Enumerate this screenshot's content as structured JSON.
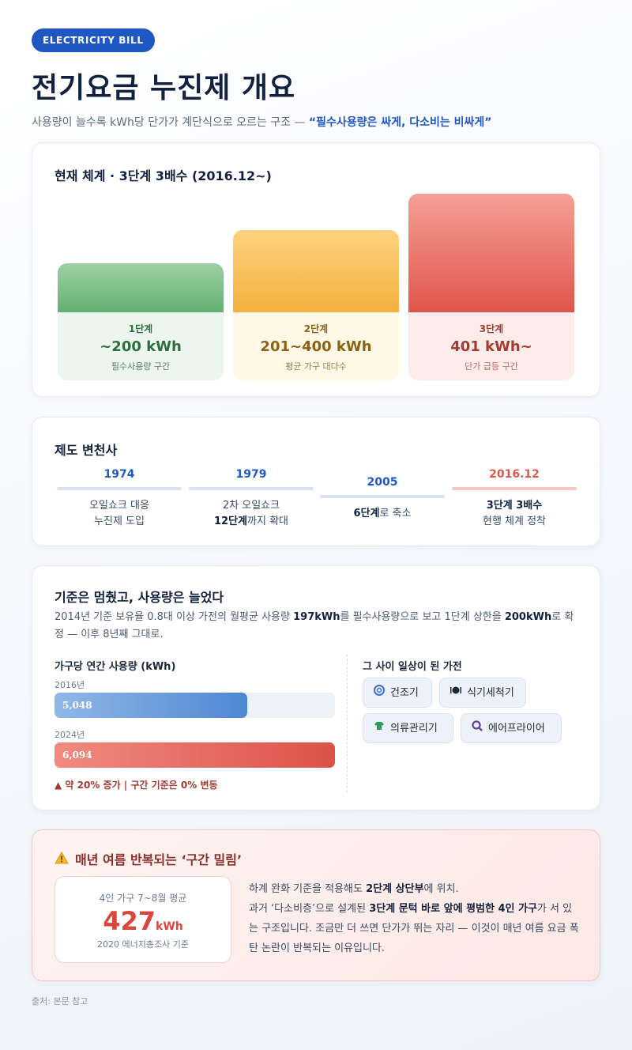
{
  "badge": "ELECTRICITY BILL",
  "title": "전기요금 누진제 개요",
  "subtitle": {
    "text": "사용량이 늘수록 kWh당 단가가 계단식으로 오르는 구조 — ",
    "highlight": "“필수사용량은 싸게, 다소비는 비싸게”"
  },
  "tiers": {
    "title": "현재 체계 · 3단계 3배수 (2016.12~)",
    "items": [
      {
        "step": "1단계",
        "range": "~200 kWh",
        "desc": "필수사용량 구간"
      },
      {
        "step": "2단계",
        "range": "201~400 kWh",
        "desc": "평균 가구 대다수"
      },
      {
        "step": "3단계",
        "range": "401 kWh~",
        "desc": "단가 급등 구간"
      }
    ]
  },
  "history": {
    "title": "제도 변천사",
    "items": [
      {
        "year": "1974",
        "line1": "오일쇼크 대응",
        "line2": "누진제 도입"
      },
      {
        "year": "1979",
        "line1": "2차 오일쇼크",
        "line2_bold": "12단계",
        "line2_rest": "까지 확대"
      },
      {
        "year": "2005",
        "line1_bold": "6단계",
        "line1_rest": "로 축소"
      },
      {
        "year": "2016.12",
        "line1_bold": "3단계 3배수",
        "line2": "현행 체계 정착"
      }
    ]
  },
  "usage": {
    "title": "기준은 멈췄고, 사용량은 늘었다",
    "desc": {
      "p1": "2014년 기준 보유율 0.8대 이상 가전의 월평균 사용량 ",
      "b1": "197kWh",
      "p2": "를 필수사용량으로 보고 1단계 상한을 ",
      "b2": "200kWh",
      "p3": "로 확정 — 이후 8년째 그대로."
    },
    "chart_title": "가구당 연간 사용량 (kWh)",
    "bars": [
      {
        "year": "2016년",
        "value_label": "5,048",
        "value": 5048
      },
      {
        "year": "2024년",
        "value_label": "6,094",
        "value": 6094
      }
    ],
    "increase": "▲ 약 20% 증가  |  구간 기준은 0% 변동",
    "appliances_title": "그 사이 일상이 된 가전",
    "appliances": [
      {
        "label": "건조기",
        "icon": "dryer-icon",
        "color": "#3b6fd6"
      },
      {
        "label": "식기세척기",
        "icon": "dishwasher-icon",
        "color": "#1d2939"
      },
      {
        "label": "의류관리기",
        "icon": "clothes-care-icon",
        "color": "#2f9a5a"
      },
      {
        "label": "에어프라이어",
        "icon": "airfryer-icon",
        "color": "#6a3fa0"
      }
    ]
  },
  "summer": {
    "title": "매년 여름 반복되는 ‘구간 밀림’",
    "box": {
      "caption": "4인 가구 7~8월 평균",
      "value": "427",
      "unit": "kWh",
      "source": "2020 에너지총조사 기준"
    },
    "text": {
      "p1": "하계 완화 기준을 적용해도 ",
      "b1": "2단계 상단부",
      "p2": "에 위치.",
      "p3": "과거 ‘다소비층’으로 설계된 ",
      "b2": "3단계 문턱 바로 앞에 평범한 4인 가구",
      "p4": "가 서 있는 구조입니다. 조금만 더 쓰면 단가가 뛰는 자리 — 이것이 매년 여름 요금 폭탄 논란이 반복되는 이유입니다."
    }
  },
  "footer": "출처: 본문 참고"
}
